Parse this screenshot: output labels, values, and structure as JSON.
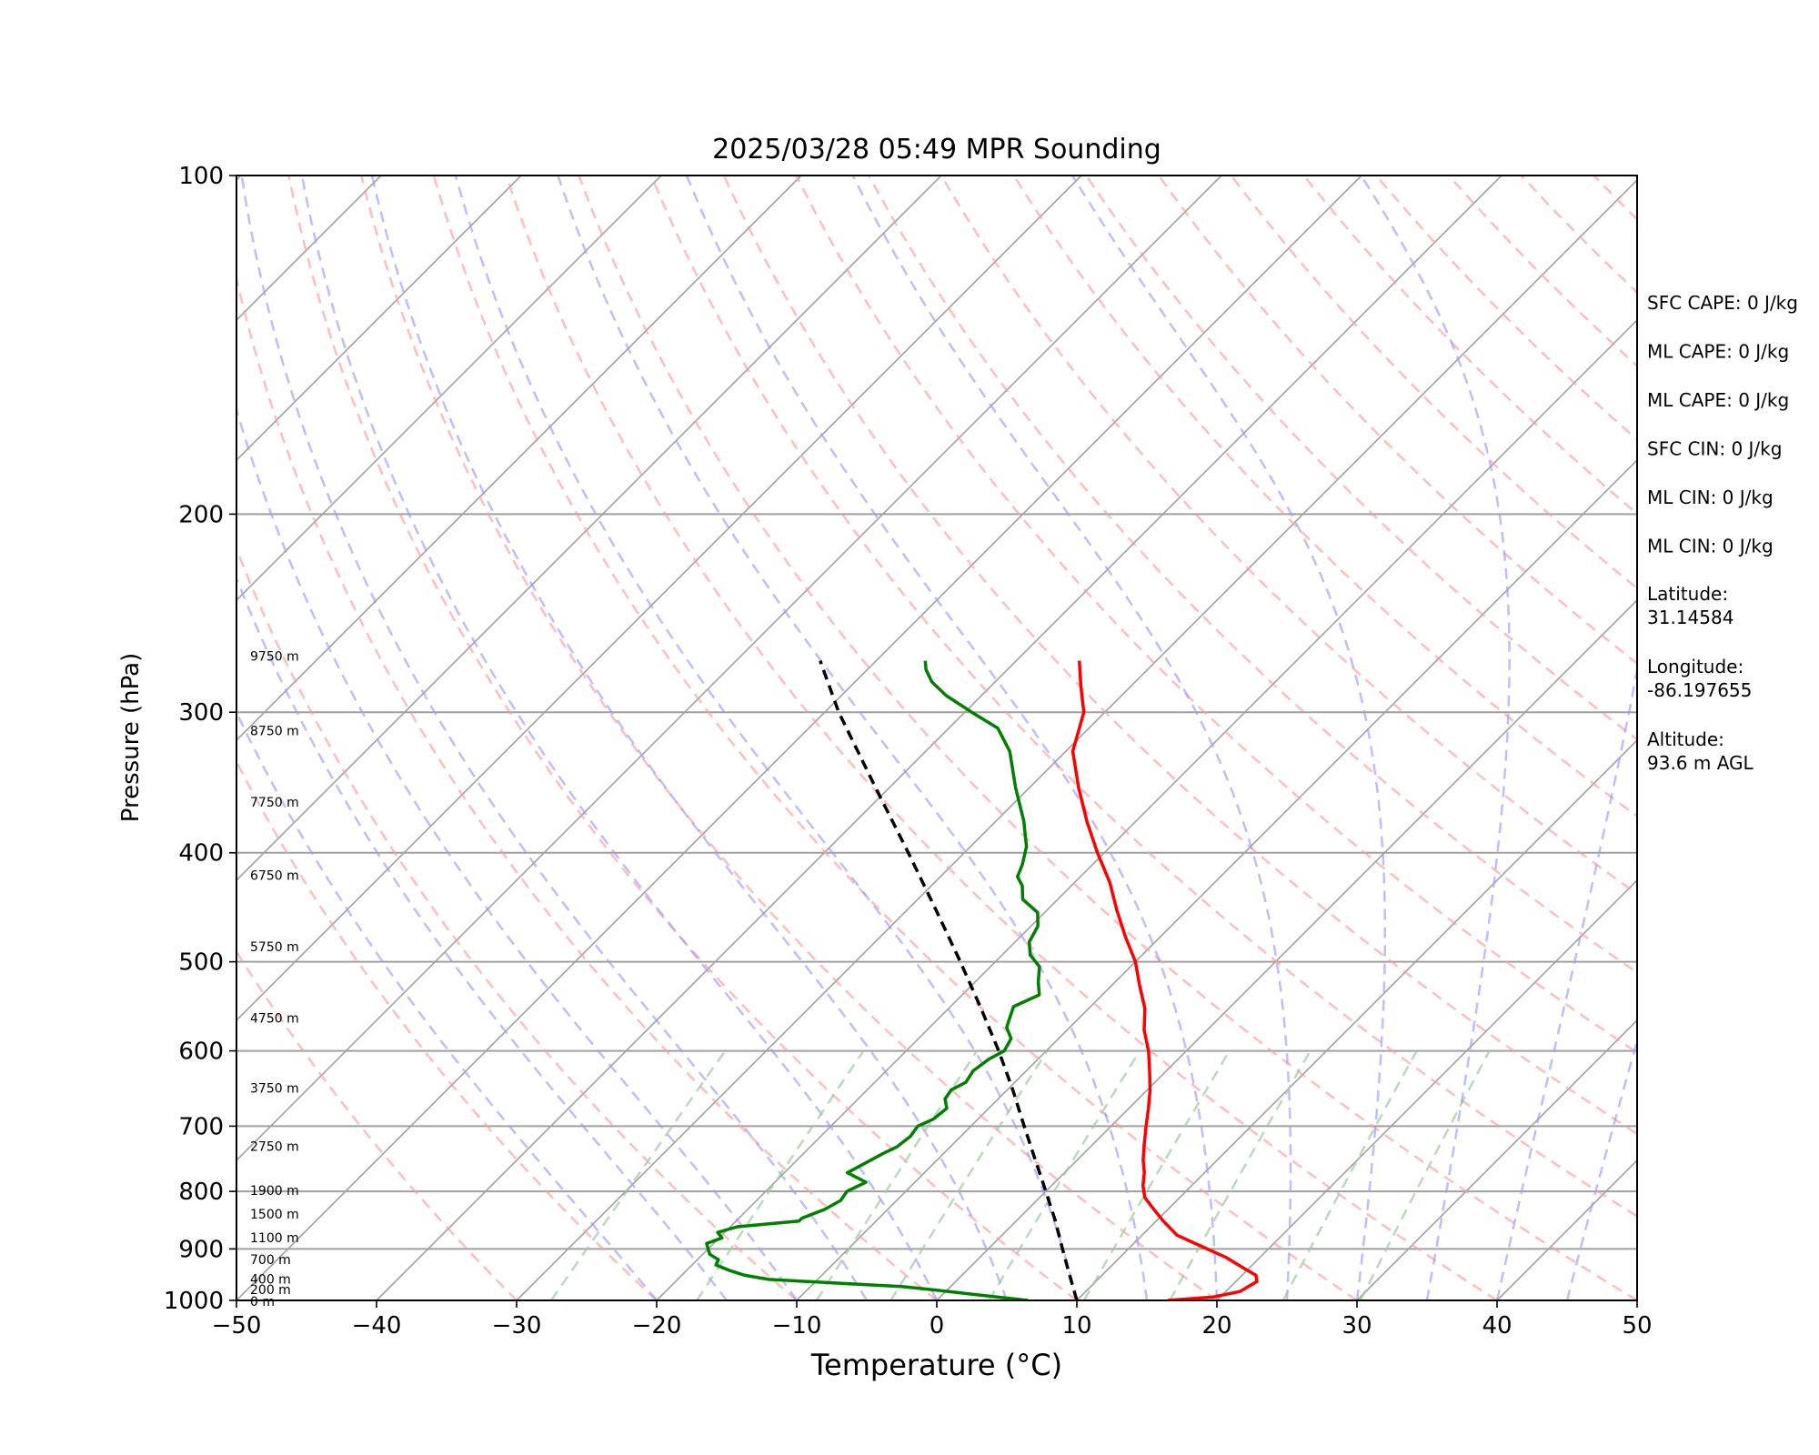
{
  "chart_data": {
    "type": "line",
    "title": "2025/03/28 05:49 MPR Sounding",
    "xlabel": "Temperature (°C)",
    "ylabel": "Pressure (hPa)",
    "xlim": [
      -50,
      50
    ],
    "ylim": [
      1000,
      100
    ],
    "y_scale": "log",
    "grid": true,
    "x_ticks": [
      "−50",
      "−40",
      "−30",
      "−20",
      "−10",
      "0",
      "10",
      "20",
      "30",
      "40",
      "50"
    ],
    "y_ticks": [
      "1000",
      "900",
      "800",
      "700",
      "600",
      "500",
      "400",
      "300",
      "200",
      "100"
    ],
    "height_labels": [
      {
        "p": 1000,
        "label": "0 m"
      },
      {
        "p": 976,
        "label": "200 m"
      },
      {
        "p": 955,
        "label": "400 m"
      },
      {
        "p": 918,
        "label": "700 m"
      },
      {
        "p": 878,
        "label": "1100 m"
      },
      {
        "p": 836,
        "label": "1500 m"
      },
      {
        "p": 797,
        "label": "1900 m"
      },
      {
        "p": 728,
        "label": "2750 m"
      },
      {
        "p": 646,
        "label": "3750 m"
      },
      {
        "p": 560,
        "label": "4750 m"
      },
      {
        "p": 484,
        "label": "5750 m"
      },
      {
        "p": 418,
        "label": "6750 m"
      },
      {
        "p": 360,
        "label": "7750 m"
      },
      {
        "p": 311,
        "label": "8750 m"
      },
      {
        "p": 267,
        "label": "9750 m"
      }
    ],
    "series": [
      {
        "color": "#ff0000",
        "p": [
          1000,
          993,
          982,
          962,
          950,
          935,
          915,
          895,
          875,
          850,
          830,
          810,
          790,
          770,
          750,
          725,
          700,
          675,
          650,
          625,
          600,
          575,
          550,
          525,
          500,
          475,
          450,
          425,
          400,
          375,
          350,
          325,
          300,
          285,
          270
        ],
        "t": [
          16.5,
          19.5,
          21.0,
          21.5,
          21.0,
          19.5,
          17.5,
          15.0,
          12.5,
          10.5,
          9.0,
          7.5,
          6.5,
          5.7,
          4.7,
          3.6,
          2.5,
          1.4,
          0.2,
          -1.2,
          -2.7,
          -4.5,
          -6.0,
          -8.0,
          -10.0,
          -12.5,
          -15.0,
          -17.5,
          -20.5,
          -23.5,
          -26.5,
          -29.5,
          -31.5,
          -33.5,
          -35.5
        ]
      },
      {
        "color": "#008000",
        "p": [
          1000,
          990,
          980,
          972,
          965,
          958,
          950,
          940,
          930,
          920,
          910,
          900,
          890,
          880,
          870,
          860,
          850,
          845,
          830,
          815,
          800,
          785,
          770,
          752,
          740,
          730,
          715,
          700,
          690,
          675,
          662,
          650,
          640,
          625,
          610,
          600,
          585,
          572,
          560,
          548,
          535,
          521,
          505,
          493,
          480,
          465,
          452,
          440,
          428,
          420,
          410,
          395,
          375,
          350,
          325,
          310,
          300,
          290,
          282,
          275,
          270
        ],
        "t": [
          6.5,
          3.0,
          -0.5,
          -3.5,
          -8.5,
          -13.5,
          -15.5,
          -17.0,
          -18.3,
          -18.5,
          -19.5,
          -20.0,
          -20.5,
          -19.8,
          -20.5,
          -19.5,
          -15.5,
          -15.5,
          -14.5,
          -14.0,
          -14.2,
          -13.5,
          -15.5,
          -14.8,
          -14.3,
          -13.8,
          -13.6,
          -13.8,
          -13.2,
          -13.0,
          -13.8,
          -14.0,
          -13.5,
          -13.8,
          -13.5,
          -13.0,
          -13.4,
          -14.5,
          -15.0,
          -15.5,
          -14.5,
          -15.5,
          -16.5,
          -18.0,
          -19.0,
          -19.5,
          -20.5,
          -22.5,
          -23.5,
          -24.5,
          -25.0,
          -26.0,
          -28.0,
          -31.0,
          -34.0,
          -36.5,
          -39.5,
          -42.5,
          -44.5,
          -45.8,
          -46.5
        ]
      },
      {
        "color": "#000000",
        "dashed": true,
        "p": [
          1000,
          950,
          900,
          850,
          800,
          750,
          700,
          650,
          600,
          550,
          500,
          450,
          400,
          350,
          300,
          270
        ],
        "t": [
          10.0,
          7.7,
          5.3,
          2.8,
          0.0,
          -3.0,
          -6.2,
          -9.6,
          -13.4,
          -17.7,
          -22.5,
          -27.9,
          -34.0,
          -41.0,
          -49.0,
          -54.0
        ]
      }
    ]
  },
  "stats": [
    {
      "text": "SFC CAPE: 0 J/kg"
    },
    {
      "text": "ML CAPE: 0 J/kg"
    },
    {
      "text": "ML CAPE: 0 J/kg"
    },
    {
      "text": "SFC CIN: 0 J/kg"
    },
    {
      "text": "ML CIN: 0 J/kg"
    },
    {
      "text": "ML CIN: 0 J/kg"
    },
    {
      "label": "Latitude:",
      "value": "31.14584"
    },
    {
      "label": "Longitude:",
      "value": "-86.197655"
    },
    {
      "label": "Altitude:",
      "value": "93.6 m AGL"
    }
  ],
  "colors": {
    "temperature": "#ff0000",
    "dewpoint": "#008000",
    "parcel": "#000000",
    "dry_adiabats": "#ff9999",
    "moist_adiabats": "#9999ff",
    "mixing_ratio": "#99cc99",
    "isotherms": "#a0a0a0"
  }
}
